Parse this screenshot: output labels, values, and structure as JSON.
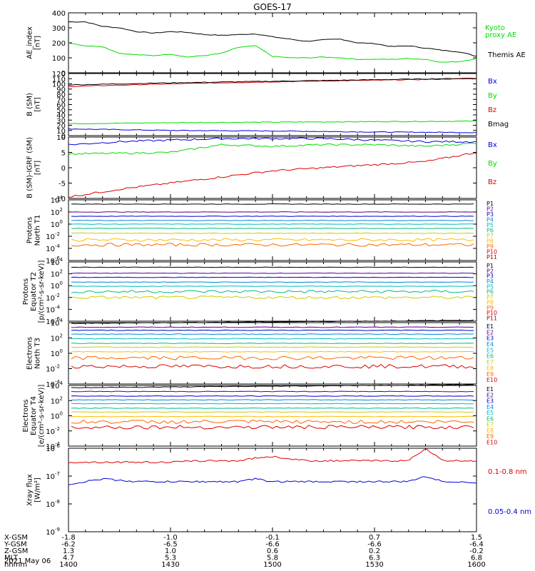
{
  "title": "GOES-17",
  "date_label": "2021 May 06",
  "x_axis": {
    "rows": [
      {
        "label": "X-GSM",
        "values": [
          "-1.8",
          "-1.0",
          "-0.1",
          "0.7",
          "1.5"
        ]
      },
      {
        "label": "Y-GSM",
        "values": [
          "-6.2",
          "-6.5",
          "-6.6",
          "-6.6",
          "-6.4"
        ]
      },
      {
        "label": "Z-GSM",
        "values": [
          "1.3",
          "1.0",
          "0.6",
          "0.2",
          "-0.2"
        ]
      },
      {
        "label": "MLT",
        "values": [
          "4.7",
          "5.3",
          "5.8",
          "6.3",
          "6.8"
        ]
      },
      {
        "label": "hhmm",
        "values": [
          "1400",
          "1430",
          "1500",
          "1530",
          "1600"
        ]
      }
    ]
  },
  "colors": {
    "black": "#000000",
    "green": "#00dd00",
    "red": "#dd0000",
    "blue": "#0000dd"
  },
  "chart_data": [
    {
      "type": "line",
      "ylabel": "AE_index [nT]",
      "ylim": [
        0,
        400
      ],
      "yticks": [
        "0",
        "100",
        "200",
        "300",
        "400"
      ],
      "x": [
        1400,
        1405,
        1410,
        1415,
        1420,
        1425,
        1430,
        1435,
        1440,
        1445,
        1450,
        1455,
        1500,
        1505,
        1510,
        1515,
        1520,
        1525,
        1530,
        1535,
        1540,
        1545,
        1550,
        1555,
        1600
      ],
      "series": [
        {
          "name": "Themis AE",
          "color": "#000000",
          "values": [
            340,
            340,
            310,
            300,
            275,
            265,
            275,
            270,
            255,
            250,
            255,
            260,
            240,
            225,
            210,
            220,
            225,
            200,
            195,
            175,
            180,
            165,
            150,
            140,
            110
          ]
        },
        {
          "name": "Kyoto proxy AE",
          "color": "#00dd00",
          "values": [
            200,
            180,
            175,
            130,
            120,
            115,
            125,
            105,
            115,
            130,
            170,
            180,
            110,
            100,
            100,
            105,
            100,
            90,
            90,
            90,
            95,
            90,
            70,
            75,
            95
          ]
        }
      ],
      "legend": [
        "Kyoto proxy AE",
        "Themis AE"
      ]
    },
    {
      "type": "line",
      "ylabel": "B (SM) [nT]",
      "ylim": [
        0,
        120
      ],
      "yticks": [
        "0",
        "10",
        "20",
        "30",
        "40",
        "50",
        "60",
        "70",
        "80",
        "90",
        "100",
        "110",
        "120"
      ],
      "x": [
        1400,
        1430,
        1500,
        1530,
        1600
      ],
      "series": [
        {
          "name": "Bx",
          "color": "#0000dd",
          "values": [
            13,
            10,
            9,
            7,
            6
          ]
        },
        {
          "name": "By",
          "color": "#00dd00",
          "values": [
            23,
            25,
            26,
            27,
            28
          ]
        },
        {
          "name": "Bz",
          "color": "#dd0000",
          "values": [
            95,
            100,
            104,
            107,
            110
          ]
        },
        {
          "name": "Bmag",
          "color": "#000000",
          "values": [
            98,
            102,
            105,
            108,
            111
          ]
        }
      ],
      "legend": [
        "Bx",
        "By",
        "Bz",
        "Bmag"
      ]
    },
    {
      "type": "line",
      "ylabel": "B (SM)-IGRF (SM) [nT]",
      "ylim": [
        -10,
        10
      ],
      "yticks": [
        "-10",
        "-5",
        "0",
        "5",
        "10"
      ],
      "x": [
        1400,
        1415,
        1430,
        1445,
        1500,
        1515,
        1530,
        1545,
        1600
      ],
      "series": [
        {
          "name": "Bx",
          "color": "#0000dd",
          "values": [
            7.5,
            8.5,
            9,
            9.5,
            9.5,
            9.5,
            9,
            8.5,
            8.5
          ]
        },
        {
          "name": "By",
          "color": "#00dd00",
          "values": [
            4.5,
            4.7,
            5,
            7.5,
            7,
            7.5,
            7.5,
            7,
            8
          ]
        },
        {
          "name": "Bz",
          "color": "#dd0000",
          "values": [
            -9.5,
            -7,
            -5,
            -3,
            -1,
            0,
            1,
            2,
            5
          ]
        }
      ],
      "legend": [
        "Bx",
        "By",
        "Bz"
      ]
    },
    {
      "type": "line",
      "ylabel": "Protons North T1",
      "yscale": "log",
      "yticks": [
        "10-6",
        "10-4",
        "10-2",
        "100",
        "102",
        "104"
      ],
      "series_levels": [
        3.3,
        2.0,
        1.3,
        0.6,
        0.0,
        -0.7,
        -1.5,
        -2.6,
        -3.4
      ],
      "legend": [
        "P1",
        "P2",
        "P3",
        "P4",
        "P5",
        "P6",
        "P7",
        "P8",
        "P9",
        "P10",
        "P11"
      ],
      "legend_colors": [
        "#000000",
        "#550088",
        "#0000cc",
        "#0088dd",
        "#00bbbb",
        "#00bb88",
        "#cccc00",
        "#ffbb00",
        "#ff6600",
        "#dd0000",
        "#990000"
      ]
    },
    {
      "type": "line",
      "ylabel": "Protons Equator T2 [p/(cm²-s-sr-keV)]",
      "yscale": "log",
      "yticks": [
        "10-6",
        "10-4",
        "10-2",
        "100",
        "102",
        "104"
      ],
      "series_levels": [
        3.1,
        2.1,
        1.4,
        0.6,
        -0.1,
        -1.0,
        -2.0
      ],
      "legend": [
        "P1",
        "P2",
        "P3",
        "P4",
        "P5",
        "P6",
        "P7",
        "P8",
        "P9",
        "P10",
        "P11"
      ],
      "legend_colors": [
        "#000000",
        "#550088",
        "#0000cc",
        "#0088dd",
        "#00bbbb",
        "#00bb88",
        "#cccc00",
        "#ffbb00",
        "#ff6600",
        "#dd0000",
        "#990000"
      ]
    },
    {
      "type": "line",
      "ylabel": "Electrons North T3",
      "yscale": "log",
      "yticks": [
        "10-4",
        "10-2",
        "100",
        "102",
        "104"
      ],
      "series_levels": [
        3.9,
        3.4,
        3.0,
        2.5,
        1.9,
        1.3,
        0.8,
        0.2,
        -0.6,
        -1.7
      ],
      "legend": [
        "E1",
        "E2",
        "E3",
        "E4",
        "E5",
        "E6",
        "E7",
        "E8",
        "E9",
        "E10"
      ],
      "legend_colors": [
        "#000000",
        "#550088",
        "#0000cc",
        "#0088dd",
        "#00bbbb",
        "#00bb88",
        "#cccc00",
        "#ffbb00",
        "#ff6600",
        "#dd0000"
      ]
    },
    {
      "type": "line",
      "ylabel": "Electrons Equator T4 [e/(cm²-s-sr-keV)]",
      "yscale": "log",
      "yticks": [
        "10-4",
        "10-2",
        "100",
        "102",
        "104"
      ],
      "series_levels": [
        3.7,
        3.2,
        2.6,
        2.1,
        1.6,
        1.0,
        0.5,
        -0.1,
        -0.8,
        -1.5
      ],
      "legend": [
        "E1",
        "E2",
        "E3",
        "E4",
        "E5",
        "E6",
        "E7",
        "E8",
        "E9",
        "E10"
      ],
      "legend_colors": [
        "#000000",
        "#550088",
        "#0000cc",
        "#0088dd",
        "#00bbbb",
        "#00bb88",
        "#cccc00",
        "#ffbb00",
        "#ff6600",
        "#dd0000"
      ]
    },
    {
      "type": "line",
      "ylabel": "Xray flux [W/m²]",
      "yscale": "log",
      "ylim": [
        -9,
        -8
      ],
      "yticks": [
        "10-9",
        "10-8",
        "10-7",
        "10-6"
      ],
      "x": [
        1400,
        1410,
        1420,
        1430,
        1440,
        1450,
        1455,
        1500,
        1510,
        1520,
        1530,
        1540,
        1545,
        1550,
        1555,
        1600
      ],
      "series": [
        {
          "name": "0.1-0.8 nm",
          "color": "#dd0000",
          "values": [
            -6.5,
            -6.5,
            -6.5,
            -6.5,
            -6.45,
            -6.45,
            -6.35,
            -6.3,
            -6.45,
            -6.45,
            -6.45,
            -6.45,
            -6.0,
            -6.45,
            -6.45,
            -6.45
          ]
        },
        {
          "name": "0.05-0.4 nm",
          "color": "#0000dd",
          "values": [
            -7.3,
            -7.1,
            -7.2,
            -7.2,
            -7.2,
            -7.2,
            -7.1,
            -7.2,
            -7.2,
            -7.2,
            -7.2,
            -7.2,
            -7.0,
            -7.2,
            -7.2,
            -7.25
          ]
        }
      ],
      "legend": [
        "0.1-0.8 nm",
        "0.05-0.4 nm"
      ]
    }
  ]
}
